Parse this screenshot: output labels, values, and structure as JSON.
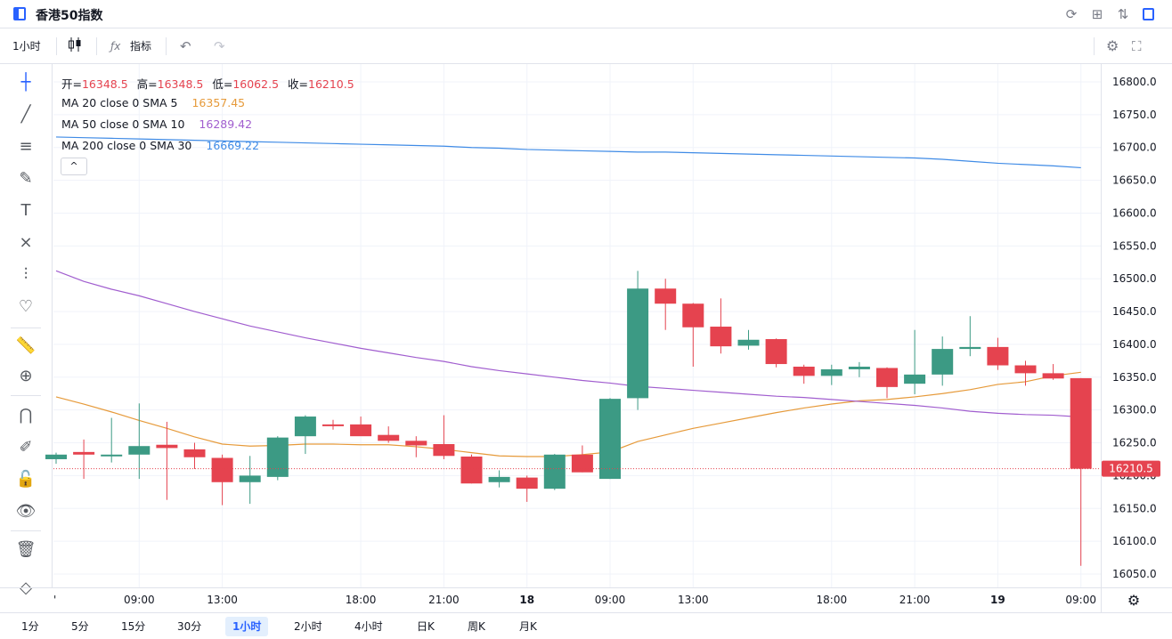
{
  "title": "香港50指数",
  "toolbar": {
    "interval": "1小时",
    "indicators_label": "指标"
  },
  "legend": {
    "ohlc": [
      {
        "label": "开=",
        "value": "16348.5"
      },
      {
        "label": "高=",
        "value": "16348.5"
      },
      {
        "label": "低=",
        "value": "16062.5"
      },
      {
        "label": "收=",
        "value": "16210.5"
      }
    ],
    "ma": [
      {
        "label": "MA 20 close 0 SMA 5",
        "value": "16357.45",
        "color": "#e69a3a"
      },
      {
        "label": "MA 50 close 0 SMA 10",
        "value": "16289.42",
        "color": "#a15ecf"
      },
      {
        "label": "MA 200 close 0 SMA 30",
        "value": "16669.22",
        "color": "#3f8be6"
      }
    ]
  },
  "price_label": "16210.5",
  "periods": [
    "1分",
    "5分",
    "15分",
    "30分",
    "1小时",
    "2小时",
    "4小时",
    "日K",
    "周K",
    "月K"
  ],
  "active_period": "1小时",
  "colors": {
    "up": "#26a69a",
    "up_display": "#3c9a84",
    "down": "#e5434f",
    "accent": "#2962ff",
    "ohlc_value": "#e5434f"
  },
  "chart_data": {
    "type": "candlestick",
    "ylim": [
      16030,
      16830
    ],
    "y_ticks": [
      16050,
      16100,
      16150,
      16200,
      16250,
      16300,
      16350,
      16400,
      16450,
      16500,
      16550,
      16600,
      16650,
      16700,
      16750,
      16800
    ],
    "x_ticks": [
      {
        "label": "'",
        "index": 0
      },
      {
        "label": "09:00",
        "index": 3
      },
      {
        "label": "13:00",
        "index": 6
      },
      {
        "label": "18:00",
        "index": 11
      },
      {
        "label": "21:00",
        "index": 14
      },
      {
        "label": "18",
        "index": 17,
        "bold": true
      },
      {
        "label": "09:00",
        "index": 20
      },
      {
        "label": "13:00",
        "index": 23
      },
      {
        "label": "18:00",
        "index": 28
      },
      {
        "label": "21:00",
        "index": 31
      },
      {
        "label": "19",
        "index": 34,
        "bold": true
      },
      {
        "label": "09:00",
        "index": 37
      }
    ],
    "candles": [
      {
        "o": 16225,
        "h": 16235,
        "l": 16218,
        "c": 16232
      },
      {
        "o": 16236,
        "h": 16255,
        "l": 16195,
        "c": 16232
      },
      {
        "o": 16230,
        "h": 16288,
        "l": 16220,
        "c": 16232
      },
      {
        "o": 16232,
        "h": 16310,
        "l": 16195,
        "c": 16245
      },
      {
        "o": 16247,
        "h": 16282,
        "l": 16163,
        "c": 16242
      },
      {
        "o": 16240,
        "h": 16250,
        "l": 16210,
        "c": 16228
      },
      {
        "o": 16227,
        "h": 16232,
        "l": 16155,
        "c": 16190
      },
      {
        "o": 16190,
        "h": 16230,
        "l": 16157,
        "c": 16200
      },
      {
        "o": 16198,
        "h": 16260,
        "l": 16193,
        "c": 16258
      },
      {
        "o": 16260,
        "h": 16292,
        "l": 16233,
        "c": 16290
      },
      {
        "o": 16278,
        "h": 16285,
        "l": 16270,
        "c": 16277
      },
      {
        "o": 16278,
        "h": 16290,
        "l": 16263,
        "c": 16260
      },
      {
        "o": 16262,
        "h": 16275,
        "l": 16250,
        "c": 16253
      },
      {
        "o": 16253,
        "h": 16260,
        "l": 16228,
        "c": 16246
      },
      {
        "o": 16248,
        "h": 16292,
        "l": 16225,
        "c": 16230
      },
      {
        "o": 16229,
        "h": 16232,
        "l": 16188,
        "c": 16188
      },
      {
        "o": 16190,
        "h": 16208,
        "l": 16182,
        "c": 16198
      },
      {
        "o": 16197,
        "h": 16200,
        "l": 16160,
        "c": 16180
      },
      {
        "o": 16180,
        "h": 16233,
        "l": 16178,
        "c": 16232
      },
      {
        "o": 16232,
        "h": 16246,
        "l": 16205,
        "c": 16205
      },
      {
        "o": 16195,
        "h": 16318,
        "l": 16195,
        "c": 16317
      },
      {
        "o": 16318,
        "h": 16512,
        "l": 16300,
        "c": 16485
      },
      {
        "o": 16485,
        "h": 16500,
        "l": 16422,
        "c": 16462
      },
      {
        "o": 16462,
        "h": 16463,
        "l": 16366,
        "c": 16426
      },
      {
        "o": 16427,
        "h": 16470,
        "l": 16386,
        "c": 16397
      },
      {
        "o": 16398,
        "h": 16422,
        "l": 16392,
        "c": 16407
      },
      {
        "o": 16408,
        "h": 16409,
        "l": 16365,
        "c": 16370
      },
      {
        "o": 16366,
        "h": 16369,
        "l": 16340,
        "c": 16352
      },
      {
        "o": 16352,
        "h": 16369,
        "l": 16338,
        "c": 16362
      },
      {
        "o": 16362,
        "h": 16373,
        "l": 16350,
        "c": 16366
      },
      {
        "o": 16364,
        "h": 16365,
        "l": 16318,
        "c": 16335
      },
      {
        "o": 16340,
        "h": 16422,
        "l": 16324,
        "c": 16354
      },
      {
        "o": 16354,
        "h": 16412,
        "l": 16337,
        "c": 16393
      },
      {
        "o": 16393,
        "h": 16443,
        "l": 16382,
        "c": 16396
      },
      {
        "o": 16396,
        "h": 16410,
        "l": 16361,
        "c": 16368
      },
      {
        "o": 16368,
        "h": 16375,
        "l": 16337,
        "c": 16356
      },
      {
        "o": 16356,
        "h": 16370,
        "l": 16346,
        "c": 16348
      },
      {
        "o": 16348.5,
        "h": 16348.5,
        "l": 16062.5,
        "c": 16210.5
      }
    ],
    "ma_lines": [
      {
        "name": "MA 20 close 0 SMA 5",
        "color": "#e69a3a",
        "values": [
          16320,
          16309,
          16297,
          16284,
          16272,
          16259,
          16248,
          16245,
          16246,
          16248,
          16248,
          16247,
          16247,
          16244,
          16240,
          16235,
          16230,
          16229,
          16229,
          16232,
          16236,
          16252,
          16262,
          16272,
          16280,
          16288,
          16296,
          16303,
          16309,
          16314,
          16316,
          16320,
          16325,
          16331,
          16339,
          16343,
          16352,
          16357.45
        ]
      },
      {
        "name": "MA 50 close 0 SMA 10",
        "color": "#a15ecf",
        "values": [
          16512,
          16496,
          16484,
          16474,
          16462,
          16450,
          16439,
          16428,
          16419,
          16410,
          16402,
          16394,
          16387,
          16380,
          16374,
          16366,
          16360,
          16355,
          16350,
          16345,
          16341,
          16336,
          16333,
          16330,
          16327,
          16324,
          16321,
          16319,
          16316,
          16313,
          16310,
          16307,
          16303,
          16298,
          16295,
          16293,
          16292,
          16289.42
        ]
      },
      {
        "name": "MA 200 close 0 SMA 30",
        "color": "#3f8be6",
        "values": [
          16716,
          16715,
          16714,
          16713,
          16712,
          16711,
          16710,
          16709,
          16708,
          16707,
          16706,
          16705,
          16704,
          16703,
          16702,
          16700,
          16699,
          16697,
          16696,
          16695,
          16694,
          16693,
          16693,
          16692,
          16691,
          16690,
          16689,
          16688,
          16687,
          16686,
          16685,
          16684,
          16682,
          16679,
          16676,
          16674,
          16672,
          16669.22
        ]
      }
    ]
  }
}
